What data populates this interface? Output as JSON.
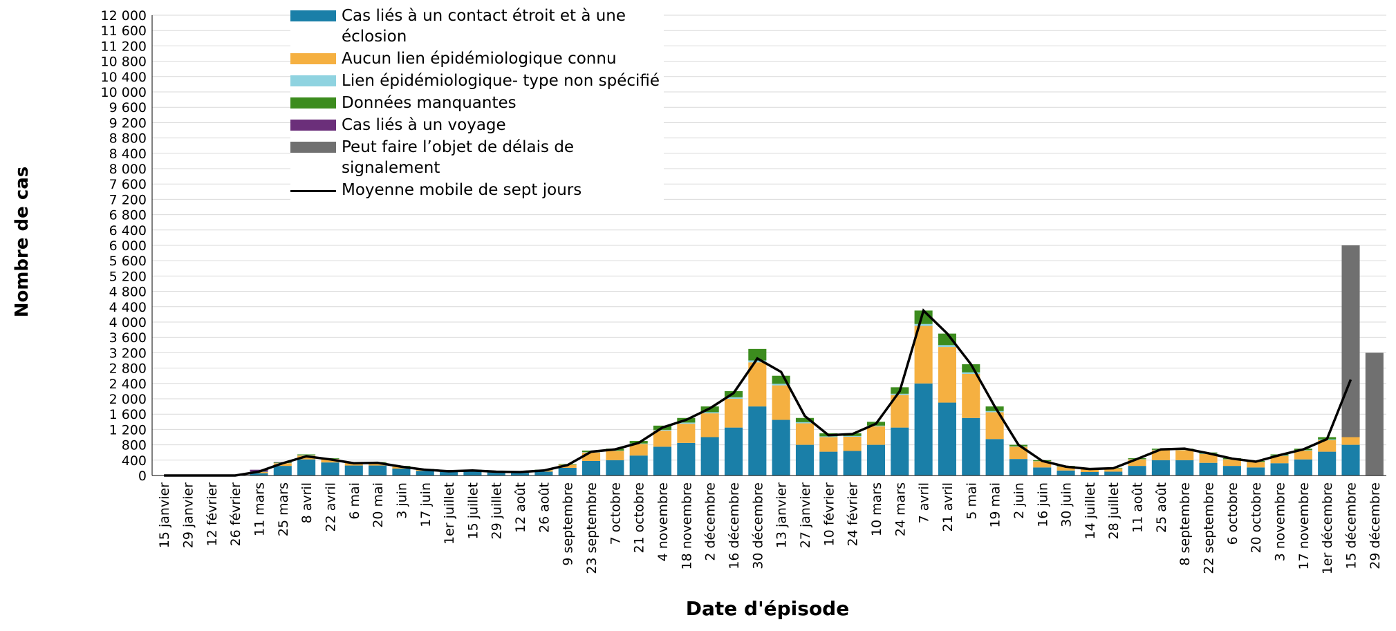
{
  "chart_data": {
    "type": "stacked_bar",
    "x_label": "Date d'épisode",
    "y_label": "Nombre de cas",
    "categories": [
      "15 janvier",
      "29 janvier",
      "12 février",
      "26 février",
      "11 mars",
      "25 mars",
      "8 avril",
      "22 avril",
      "6 mai",
      "20 mai",
      "3 juin",
      "17 juin",
      "1er juillet",
      "15 juillet",
      "29 juillet",
      "12 août",
      "26 août",
      "9 septembre",
      "23 septembre",
      "7 octobre",
      "21 octobre",
      "4 novembre",
      "18 novembre",
      "2 décembre",
      "16 décembre",
      "30 décembre",
      "13 janvier",
      "27 janvier",
      "10 février",
      "24 février",
      "10 mars",
      "24 mars",
      "7 avril",
      "21 avril",
      "5 mai",
      "19 mai",
      "2 juin",
      "16 juin",
      "30 juin",
      "14 juillet",
      "28 juillet",
      "11 août",
      "25 août",
      "8 septembre",
      "22 septembre",
      "6 octobre",
      "20 octobre",
      "3 novembre",
      "17 novembre",
      "1er décembre",
      "15 décembre",
      "29 décembre"
    ],
    "series": [
      {
        "name": "Cas liés à un contact étroit et à une éclosion",
        "color": "#1a7fa8",
        "values": [
          0,
          0,
          0,
          0,
          60,
          250,
          420,
          340,
          260,
          260,
          180,
          120,
          90,
          100,
          80,
          70,
          100,
          200,
          380,
          400,
          520,
          750,
          850,
          1000,
          1250,
          1800,
          1450,
          800,
          620,
          640,
          800,
          1250,
          2400,
          1900,
          1500,
          950,
          430,
          210,
          130,
          90,
          100,
          250,
          400,
          400,
          330,
          250,
          210,
          320,
          420,
          620,
          800,
          0
        ]
      },
      {
        "name": "Aucun lien épidémiologique connu",
        "color": "#f5b041",
        "values": [
          0,
          0,
          0,
          0,
          30,
          70,
          100,
          90,
          70,
          70,
          50,
          40,
          30,
          40,
          30,
          25,
          40,
          80,
          220,
          240,
          300,
          420,
          500,
          620,
          750,
          1150,
          900,
          560,
          380,
          370,
          480,
          850,
          1500,
          1450,
          1150,
          700,
          320,
          160,
          100,
          75,
          85,
          170,
          260,
          260,
          230,
          170,
          140,
          190,
          230,
          300,
          200,
          0
        ]
      },
      {
        "name": "Lien épidémiologique- type non spécifié",
        "color": "#8fd3e0",
        "values": [
          0,
          0,
          0,
          0,
          5,
          5,
          10,
          5,
          5,
          5,
          5,
          3,
          3,
          3,
          3,
          2,
          3,
          5,
          10,
          10,
          15,
          20,
          30,
          30,
          40,
          50,
          40,
          30,
          20,
          20,
          20,
          30,
          50,
          50,
          40,
          30,
          10,
          5,
          5,
          3,
          3,
          5,
          10,
          10,
          10,
          5,
          5,
          10,
          10,
          20,
          0,
          0
        ]
      },
      {
        "name": "Données manquantes",
        "color": "#3c8c1e",
        "values": [
          0,
          0,
          0,
          0,
          5,
          15,
          20,
          15,
          15,
          15,
          15,
          7,
          7,
          7,
          7,
          3,
          7,
          15,
          40,
          50,
          65,
          110,
          120,
          150,
          160,
          300,
          210,
          110,
          80,
          70,
          100,
          170,
          350,
          300,
          210,
          120,
          40,
          25,
          15,
          12,
          12,
          25,
          30,
          30,
          30,
          25,
          25,
          30,
          40,
          60,
          0,
          0
        ]
      },
      {
        "name": "Cas liés à un voyage",
        "color": "#6b2f7a",
        "values": [
          0,
          0,
          0,
          10,
          50,
          10,
          0,
          0,
          0,
          0,
          0,
          0,
          0,
          0,
          0,
          0,
          0,
          0,
          0,
          0,
          0,
          0,
          0,
          0,
          0,
          0,
          0,
          0,
          0,
          0,
          0,
          0,
          0,
          0,
          0,
          0,
          0,
          0,
          0,
          0,
          0,
          0,
          0,
          0,
          0,
          0,
          0,
          0,
          0,
          0,
          0,
          0
        ]
      },
      {
        "name": "Peut faire l’objet de délais de signalement",
        "color": "#707070",
        "values": [
          0,
          0,
          0,
          0,
          0,
          0,
          0,
          0,
          0,
          0,
          0,
          0,
          0,
          0,
          0,
          0,
          0,
          0,
          0,
          0,
          0,
          0,
          0,
          0,
          0,
          0,
          0,
          0,
          0,
          0,
          0,
          0,
          0,
          0,
          0,
          0,
          0,
          0,
          0,
          0,
          0,
          0,
          0,
          0,
          0,
          0,
          0,
          0,
          0,
          0,
          5000,
          3200
        ]
      }
    ],
    "line": {
      "name": "Moyenne mobile de sept jours",
      "color": "#000000",
      "values": [
        0,
        0,
        0,
        0,
        100,
        320,
        500,
        420,
        320,
        330,
        230,
        150,
        110,
        130,
        100,
        90,
        130,
        270,
        620,
        680,
        850,
        1250,
        1450,
        1750,
        2150,
        3050,
        2700,
        1550,
        1050,
        1080,
        1350,
        2200,
        4300,
        3700,
        2900,
        1800,
        800,
        380,
        230,
        170,
        190,
        430,
        680,
        700,
        580,
        440,
        360,
        530,
        680,
        950,
        2500,
        null
      ]
    },
    "ylim": [
      0,
      12000
    ],
    "yticks": [
      0,
      400,
      800,
      {
        "value": 1200,
        "label": "1 200"
      },
      {
        "value": 1600,
        "label": "1 600"
      },
      {
        "value": 2000,
        "label": "2 000"
      },
      {
        "value": 2400,
        "label": "2 400"
      },
      {
        "value": 2800,
        "label": "2 800"
      },
      {
        "value": 3200,
        "label": "3 200"
      },
      {
        "value": 3600,
        "label": "3 600"
      },
      {
        "value": 4000,
        "label": "4 000"
      },
      {
        "value": 4400,
        "label": "4 400"
      },
      {
        "value": 4800,
        "label": "4 800"
      },
      {
        "value": 5200,
        "label": "5 200"
      },
      {
        "value": 5600,
        "label": "5 600"
      },
      {
        "value": 6000,
        "label": "6 000"
      },
      {
        "value": 6400,
        "label": "6 400"
      },
      {
        "value": 6800,
        "label": "6 800"
      },
      {
        "value": 7200,
        "label": "7 200"
      },
      {
        "value": 7600,
        "label": "7 600"
      },
      {
        "value": 8000,
        "label": "8 000"
      },
      {
        "value": 8400,
        "label": "8 400"
      },
      {
        "value": 8800,
        "label": "8 800"
      },
      {
        "value": 9200,
        "label": "9 200"
      },
      {
        "value": 9600,
        "label": "9 600"
      },
      {
        "value": 10000,
        "label": "10 000"
      },
      {
        "value": 10400,
        "label": "10 400"
      },
      {
        "value": 10800,
        "label": "10 800"
      },
      {
        "value": 11200,
        "label": "11 200"
      },
      {
        "value": 11600,
        "label": "11 600"
      },
      {
        "value": 12000,
        "label": "12 000"
      }
    ],
    "grid": true,
    "legend": "top-left"
  }
}
